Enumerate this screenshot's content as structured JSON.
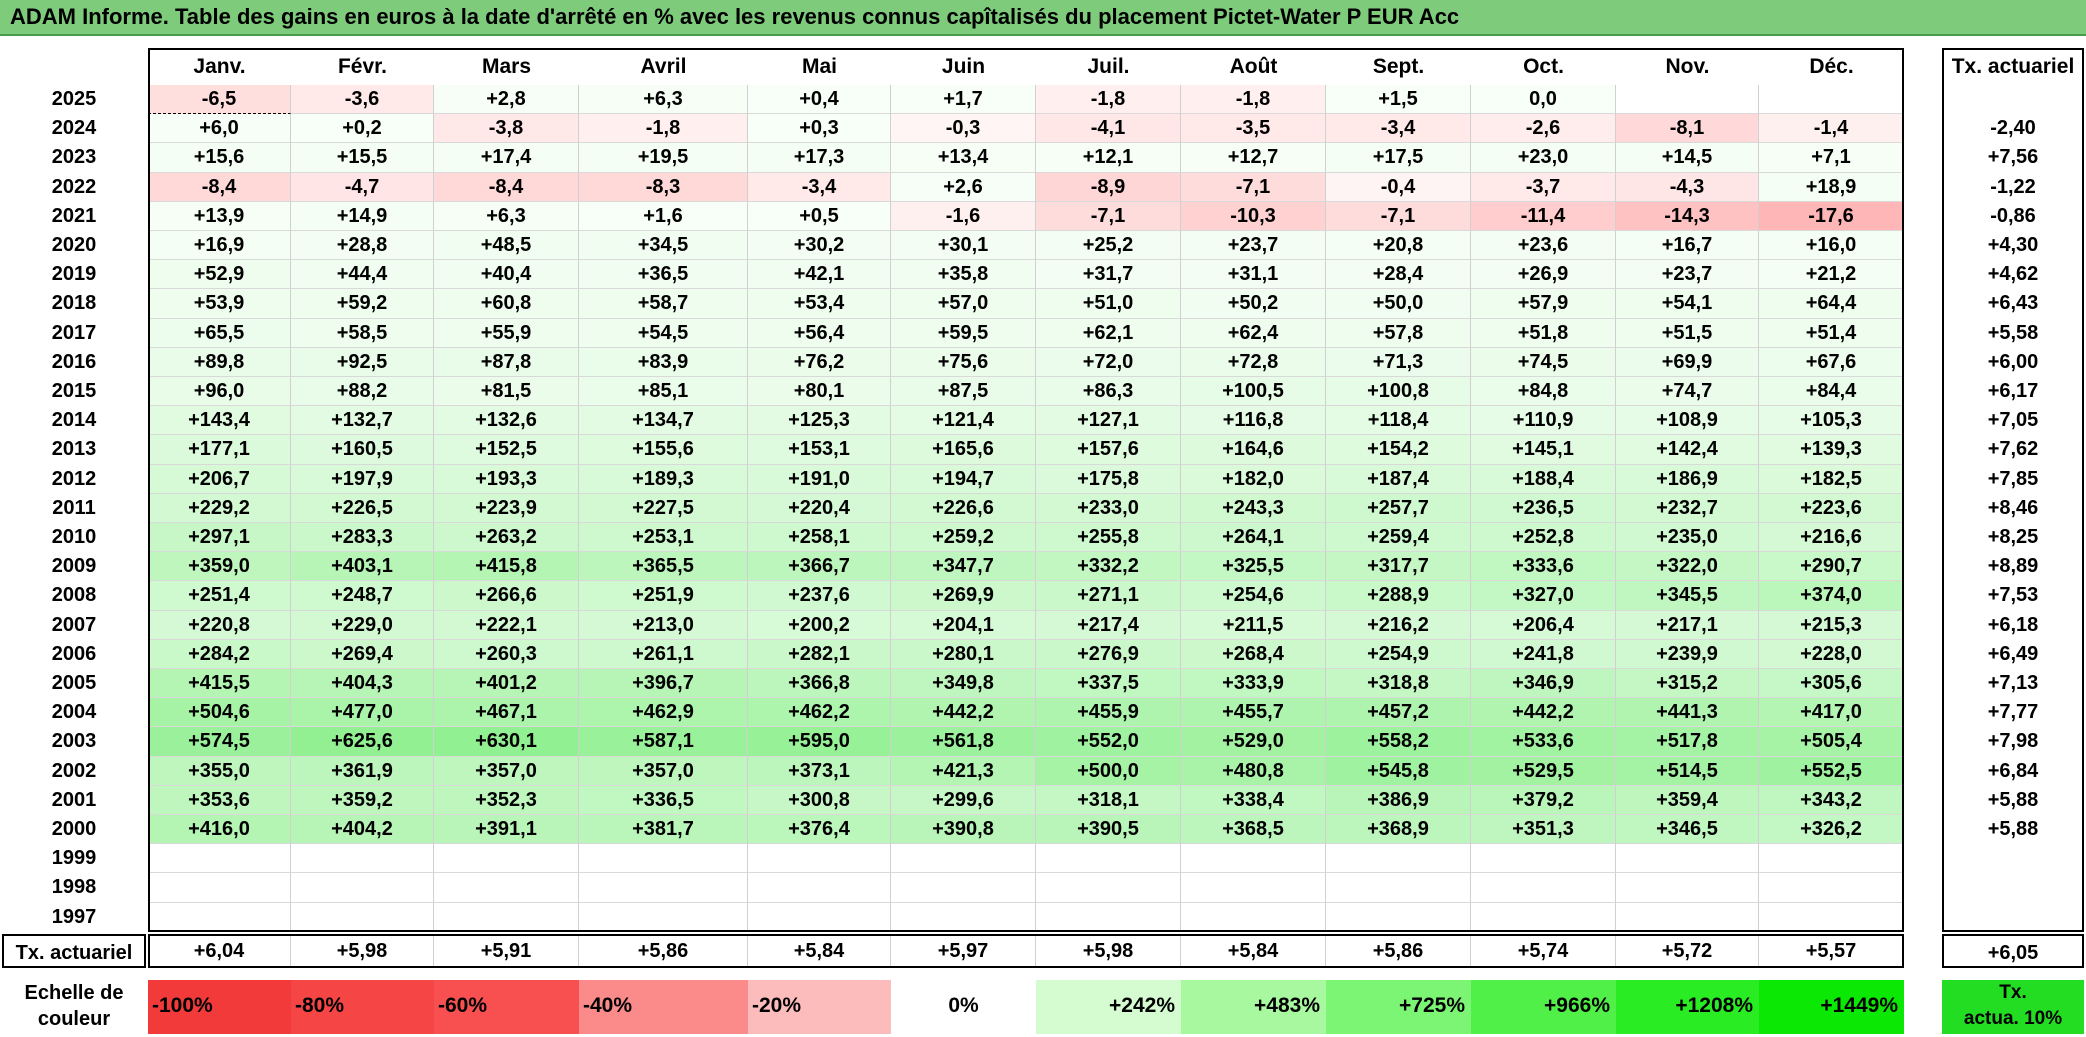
{
  "title": "ADAM Informe. Table des gains en euros à la date d'arrêté en % avec les revenus connus capîtalisés du placement Pictet-Water P EUR Acc",
  "months": [
    "Janv.",
    "Févr.",
    "Mars",
    "Avril",
    "Mai",
    "Juin",
    "Juil.",
    "Août",
    "Sept.",
    "Oct.",
    "Nov.",
    "Déc."
  ],
  "rate_header": "Tx. actuariel",
  "rows": [
    {
      "year": "2025",
      "values": [
        "-6,5",
        "-3,6",
        "+2,8",
        "+6,3",
        "+0,4",
        "+1,7",
        "-1,8",
        "-1,8",
        "+1,5",
        "0,0",
        "",
        ""
      ],
      "rate": ""
    },
    {
      "year": "2024",
      "values": [
        "+6,0",
        "+0,2",
        "-3,8",
        "-1,8",
        "+0,3",
        "-0,3",
        "-4,1",
        "-3,5",
        "-3,4",
        "-2,6",
        "-8,1",
        "-1,4"
      ],
      "rate": "-2,40"
    },
    {
      "year": "2023",
      "values": [
        "+15,6",
        "+15,5",
        "+17,4",
        "+19,5",
        "+17,3",
        "+13,4",
        "+12,1",
        "+12,7",
        "+17,5",
        "+23,0",
        "+14,5",
        "+7,1"
      ],
      "rate": "+7,56"
    },
    {
      "year": "2022",
      "values": [
        "-8,4",
        "-4,7",
        "-8,4",
        "-8,3",
        "-3,4",
        "+2,6",
        "-8,9",
        "-7,1",
        "-0,4",
        "-3,7",
        "-4,3",
        "+18,9"
      ],
      "rate": "-1,22"
    },
    {
      "year": "2021",
      "values": [
        "+13,9",
        "+14,9",
        "+6,3",
        "+1,6",
        "+0,5",
        "-1,6",
        "-7,1",
        "-10,3",
        "-7,1",
        "-11,4",
        "-14,3",
        "-17,6"
      ],
      "rate": "-0,86"
    },
    {
      "year": "2020",
      "values": [
        "+16,9",
        "+28,8",
        "+48,5",
        "+34,5",
        "+30,2",
        "+30,1",
        "+25,2",
        "+23,7",
        "+20,8",
        "+23,6",
        "+16,7",
        "+16,0"
      ],
      "rate": "+4,30"
    },
    {
      "year": "2019",
      "values": [
        "+52,9",
        "+44,4",
        "+40,4",
        "+36,5",
        "+42,1",
        "+35,8",
        "+31,7",
        "+31,1",
        "+28,4",
        "+26,9",
        "+23,7",
        "+21,2"
      ],
      "rate": "+4,62"
    },
    {
      "year": "2018",
      "values": [
        "+53,9",
        "+59,2",
        "+60,8",
        "+58,7",
        "+53,4",
        "+57,0",
        "+51,0",
        "+50,2",
        "+50,0",
        "+57,9",
        "+54,1",
        "+64,4"
      ],
      "rate": "+6,43"
    },
    {
      "year": "2017",
      "values": [
        "+65,5",
        "+58,5",
        "+55,9",
        "+54,5",
        "+56,4",
        "+59,5",
        "+62,1",
        "+62,4",
        "+57,8",
        "+51,8",
        "+51,5",
        "+51,4"
      ],
      "rate": "+5,58"
    },
    {
      "year": "2016",
      "values": [
        "+89,8",
        "+92,5",
        "+87,8",
        "+83,9",
        "+76,2",
        "+75,6",
        "+72,0",
        "+72,8",
        "+71,3",
        "+74,5",
        "+69,9",
        "+67,6"
      ],
      "rate": "+6,00"
    },
    {
      "year": "2015",
      "values": [
        "+96,0",
        "+88,2",
        "+81,5",
        "+85,1",
        "+80,1",
        "+87,5",
        "+86,3",
        "+100,5",
        "+100,8",
        "+84,8",
        "+74,7",
        "+84,4"
      ],
      "rate": "+6,17"
    },
    {
      "year": "2014",
      "values": [
        "+143,4",
        "+132,7",
        "+132,6",
        "+134,7",
        "+125,3",
        "+121,4",
        "+127,1",
        "+116,8",
        "+118,4",
        "+110,9",
        "+108,9",
        "+105,3"
      ],
      "rate": "+7,05"
    },
    {
      "year": "2013",
      "values": [
        "+177,1",
        "+160,5",
        "+152,5",
        "+155,6",
        "+153,1",
        "+165,6",
        "+157,6",
        "+164,6",
        "+154,2",
        "+145,1",
        "+142,4",
        "+139,3"
      ],
      "rate": "+7,62"
    },
    {
      "year": "2012",
      "values": [
        "+206,7",
        "+197,9",
        "+193,3",
        "+189,3",
        "+191,0",
        "+194,7",
        "+175,8",
        "+182,0",
        "+187,4",
        "+188,4",
        "+186,9",
        "+182,5"
      ],
      "rate": "+7,85"
    },
    {
      "year": "2011",
      "values": [
        "+229,2",
        "+226,5",
        "+223,9",
        "+227,5",
        "+220,4",
        "+226,6",
        "+233,0",
        "+243,3",
        "+257,7",
        "+236,5",
        "+232,7",
        "+223,6"
      ],
      "rate": "+8,46"
    },
    {
      "year": "2010",
      "values": [
        "+297,1",
        "+283,3",
        "+263,2",
        "+253,1",
        "+258,1",
        "+259,2",
        "+255,8",
        "+264,1",
        "+259,4",
        "+252,8",
        "+235,0",
        "+216,6"
      ],
      "rate": "+8,25"
    },
    {
      "year": "2009",
      "values": [
        "+359,0",
        "+403,1",
        "+415,8",
        "+365,5",
        "+366,7",
        "+347,7",
        "+332,2",
        "+325,5",
        "+317,7",
        "+333,6",
        "+322,0",
        "+290,7"
      ],
      "rate": "+8,89"
    },
    {
      "year": "2008",
      "values": [
        "+251,4",
        "+248,7",
        "+266,6",
        "+251,9",
        "+237,6",
        "+269,9",
        "+271,1",
        "+254,6",
        "+288,9",
        "+327,0",
        "+345,5",
        "+374,0"
      ],
      "rate": "+7,53"
    },
    {
      "year": "2007",
      "values": [
        "+220,8",
        "+229,0",
        "+222,1",
        "+213,0",
        "+200,2",
        "+204,1",
        "+217,4",
        "+211,5",
        "+216,2",
        "+206,4",
        "+217,1",
        "+215,3"
      ],
      "rate": "+6,18"
    },
    {
      "year": "2006",
      "values": [
        "+284,2",
        "+269,4",
        "+260,3",
        "+261,1",
        "+282,1",
        "+280,1",
        "+276,9",
        "+268,4",
        "+254,9",
        "+241,8",
        "+239,9",
        "+228,0"
      ],
      "rate": "+6,49"
    },
    {
      "year": "2005",
      "values": [
        "+415,5",
        "+404,3",
        "+401,2",
        "+396,7",
        "+366,8",
        "+349,8",
        "+337,5",
        "+333,9",
        "+318,8",
        "+346,9",
        "+315,2",
        "+305,6"
      ],
      "rate": "+7,13"
    },
    {
      "year": "2004",
      "values": [
        "+504,6",
        "+477,0",
        "+467,1",
        "+462,9",
        "+462,2",
        "+442,2",
        "+455,9",
        "+455,7",
        "+457,2",
        "+442,2",
        "+441,3",
        "+417,0"
      ],
      "rate": "+7,77"
    },
    {
      "year": "2003",
      "values": [
        "+574,5",
        "+625,6",
        "+630,1",
        "+587,1",
        "+595,0",
        "+561,8",
        "+552,0",
        "+529,0",
        "+558,2",
        "+533,6",
        "+517,8",
        "+505,4"
      ],
      "rate": "+7,98"
    },
    {
      "year": "2002",
      "values": [
        "+355,0",
        "+361,9",
        "+357,0",
        "+357,0",
        "+373,1",
        "+421,3",
        "+500,0",
        "+480,8",
        "+545,8",
        "+529,5",
        "+514,5",
        "+552,5"
      ],
      "rate": "+6,84"
    },
    {
      "year": "2001",
      "values": [
        "+353,6",
        "+359,2",
        "+352,3",
        "+336,5",
        "+300,8",
        "+299,6",
        "+318,1",
        "+338,4",
        "+386,9",
        "+379,2",
        "+359,4",
        "+343,2"
      ],
      "rate": "+5,88"
    },
    {
      "year": "2000",
      "values": [
        "+416,0",
        "+404,2",
        "+391,1",
        "+381,7",
        "+376,4",
        "+390,8",
        "+390,5",
        "+368,5",
        "+368,9",
        "+351,3",
        "+346,5",
        "+326,2"
      ],
      "rate": "+5,88"
    },
    {
      "year": "1999",
      "values": [
        "",
        "",
        "",
        "",
        "",
        "",
        "",
        "",
        "",
        "",
        "",
        ""
      ],
      "rate": ""
    },
    {
      "year": "1998",
      "values": [
        "",
        "",
        "",
        "",
        "",
        "",
        "",
        "",
        "",
        "",
        "",
        ""
      ],
      "rate": ""
    },
    {
      "year": "1997",
      "values": [
        "",
        "",
        "",
        "",
        "",
        "",
        "",
        "",
        "",
        "",
        "",
        ""
      ],
      "rate": ""
    }
  ],
  "footer": {
    "label": "Tx. actuariel",
    "values": [
      "+6,04",
      "+5,98",
      "+5,91",
      "+5,86",
      "+5,84",
      "+5,97",
      "+5,98",
      "+5,84",
      "+5,86",
      "+5,74",
      "+5,72",
      "+5,57"
    ],
    "total": "+6,05"
  },
  "scale": {
    "label_line1": "Echelle de",
    "label_line2": "couleur",
    "items": [
      {
        "text": "-100%",
        "color": "#f23a3a",
        "align": "left"
      },
      {
        "text": "-80%",
        "color": "#f54545",
        "align": "left"
      },
      {
        "text": "-60%",
        "color": "#f85050",
        "align": "left"
      },
      {
        "text": "-40%",
        "color": "#fb8a8a",
        "align": "left"
      },
      {
        "text": "-20%",
        "color": "#fdbcbc",
        "align": "left"
      },
      {
        "text": "0%",
        "color": "#ffffff",
        "align": "center"
      },
      {
        "text": "+242%",
        "color": "#d4fcd0",
        "align": "right"
      },
      {
        "text": "+483%",
        "color": "#a8f8a0",
        "align": "right"
      },
      {
        "text": "+725%",
        "color": "#7cf474",
        "align": "right"
      },
      {
        "text": "+966%",
        "color": "#50f048",
        "align": "right"
      },
      {
        "text": "+1208%",
        "color": "#2aec22",
        "align": "right"
      },
      {
        "text": "+1449%",
        "color": "#0ae804",
        "align": "right"
      }
    ],
    "rate_line1": "Tx.",
    "rate_line2": "actua. 10%",
    "rate_color": "#22dd22"
  },
  "colors": {
    "title_bg": "#7ecb7c",
    "negative": "#ff4040",
    "positive": "#2ee62e"
  }
}
